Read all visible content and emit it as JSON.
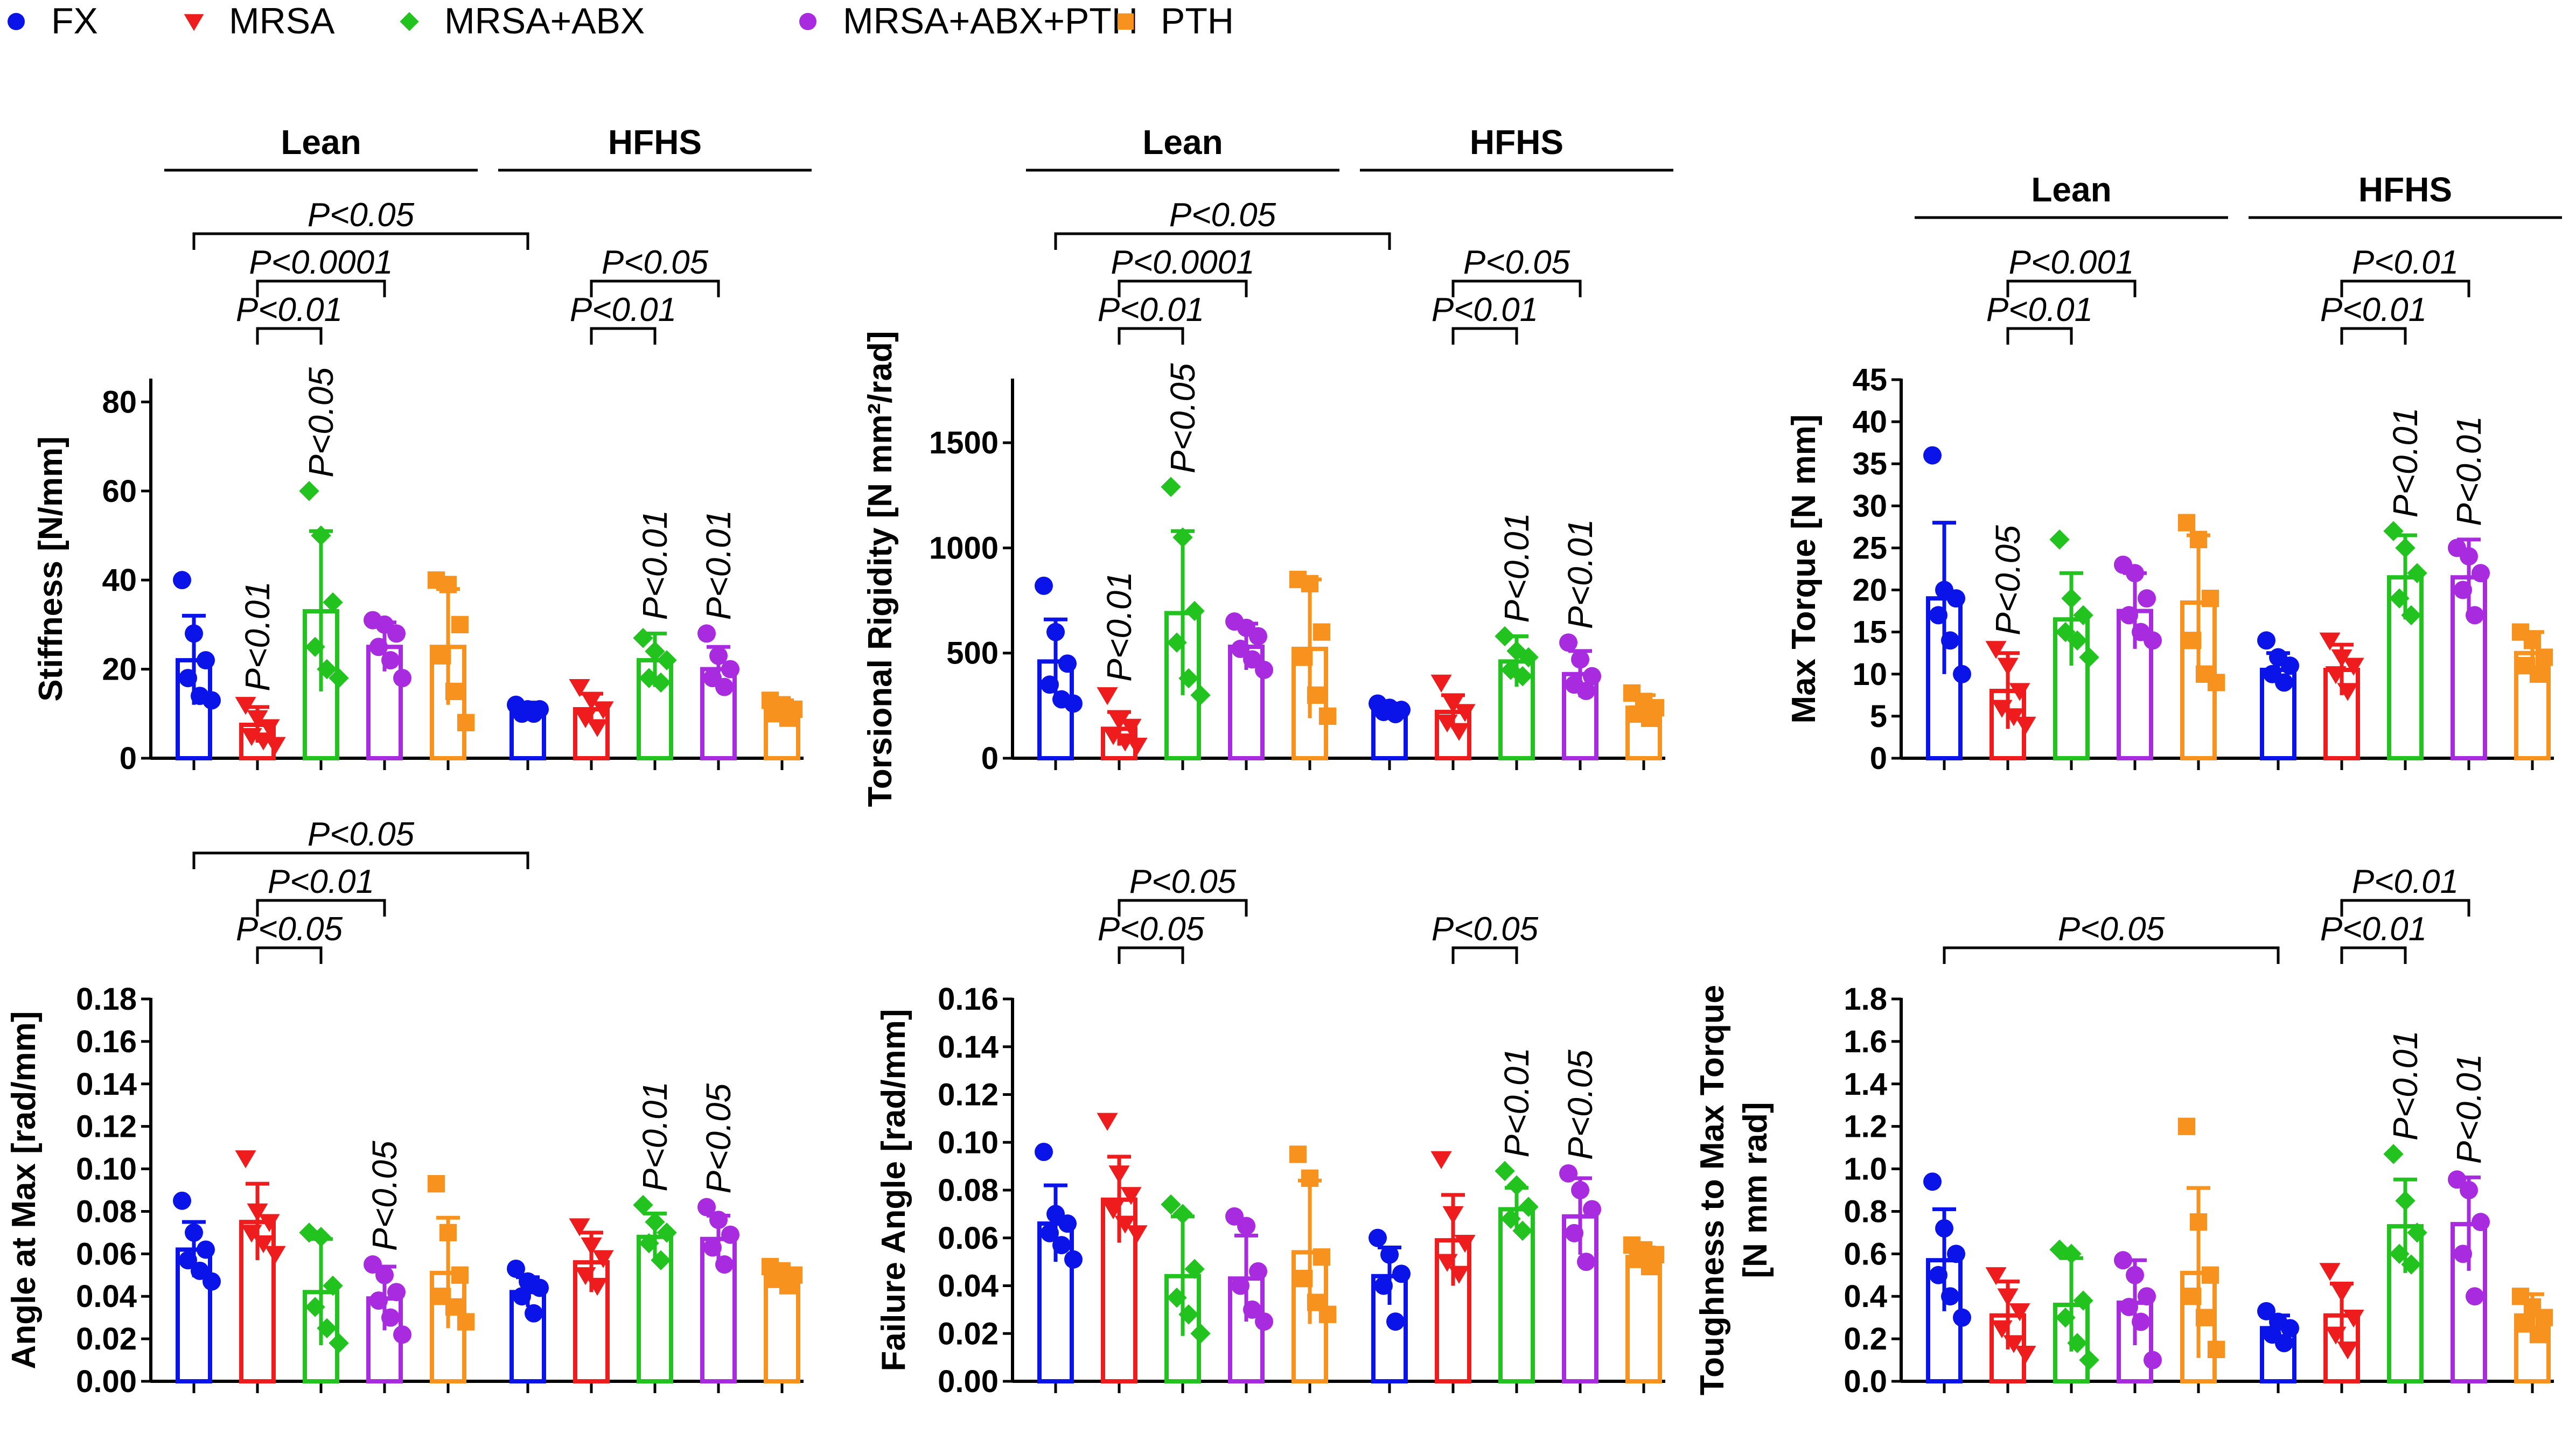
{
  "figure": {
    "legend": [
      {
        "label": "FX",
        "color": "#0b14e8",
        "marker": "circle"
      },
      {
        "label": "MRSA",
        "color": "#ee1c1c",
        "marker": "triangle-down"
      },
      {
        "label": "MRSA+ABX",
        "color": "#22c31f",
        "marker": "diamond"
      },
      {
        "label": "MRSA+ABX+PTH",
        "color": "#a82be0",
        "marker": "circle"
      },
      {
        "label": "PTH",
        "color": "#f7921e",
        "marker": "square"
      }
    ],
    "tick_format_note": "y tick labels as printed"
  },
  "chart_data": [
    {
      "id": "stiffness",
      "type": "bar",
      "ylabel": [
        "Stiffness [N/mm]"
      ],
      "ylim": [
        0,
        85
      ],
      "yticks": [
        0,
        20,
        40,
        60,
        80
      ],
      "ytick_labels": [
        "0",
        "20",
        "40",
        "60",
        "80"
      ],
      "groups": [
        {
          "label": "Lean",
          "from": 0,
          "to": 4
        },
        {
          "label": "HFHS",
          "from": 5,
          "to": 9
        }
      ],
      "categories": [
        "FX",
        "MRSA",
        "MRSA+ABX",
        "MRSA+ABX+PTH",
        "PTH",
        "FX",
        "MRSA",
        "MRSA+ABX",
        "MRSA+ABX+PTH",
        "PTH"
      ],
      "series_index": [
        0,
        1,
        2,
        3,
        4,
        0,
        1,
        2,
        3,
        4
      ],
      "values": [
        22,
        7.5,
        33,
        25,
        25,
        11,
        11,
        22,
        20,
        11
      ],
      "errors": [
        10,
        4,
        18,
        5.5,
        13,
        1.5,
        3.5,
        6,
        5,
        2
      ],
      "points": [
        [
          40,
          28,
          22,
          18,
          14,
          13
        ],
        [
          12,
          9,
          7,
          5,
          4,
          3
        ],
        [
          60,
          50,
          35,
          25,
          20,
          18
        ],
        [
          31,
          30,
          28,
          25,
          22,
          18
        ],
        [
          40,
          39,
          30,
          23,
          15,
          8
        ],
        [
          12,
          11,
          11,
          10,
          10
        ],
        [
          16,
          13,
          11,
          9,
          7
        ],
        [
          27,
          24,
          22,
          18,
          17
        ],
        [
          28,
          23,
          20,
          18,
          16
        ],
        [
          13,
          12,
          11,
          10,
          9
        ]
      ],
      "vertical_annotations": [
        {
          "bar": 1,
          "text": "P<0.01"
        },
        {
          "bar": 2,
          "text": "P<0.05"
        },
        {
          "bar": 7,
          "text": "P<0.01"
        },
        {
          "bar": 8,
          "text": "P<0.01"
        }
      ],
      "brackets": [
        {
          "from": 0,
          "to": 5,
          "text": "P<0.05"
        },
        {
          "from": 1,
          "to": 3,
          "text": "P<0.0001"
        },
        {
          "from": 1,
          "to": 2,
          "text": "P<0.01"
        },
        {
          "from": 6,
          "to": 8,
          "text": "P<0.05"
        },
        {
          "from": 6,
          "to": 7,
          "text": "P<0.01"
        }
      ]
    },
    {
      "id": "torsional_rigidity",
      "type": "bar",
      "ylabel": [
        "Torsional Rigidity [N mm²/rad]"
      ],
      "ylim": [
        0,
        1800
      ],
      "yticks": [
        0,
        500,
        1000,
        1500
      ],
      "ytick_labels": [
        "0",
        "500",
        "1000",
        "1500"
      ],
      "groups": [
        {
          "label": "Lean",
          "from": 0,
          "to": 4
        },
        {
          "label": "HFHS",
          "from": 5,
          "to": 9
        }
      ],
      "categories": [
        "FX",
        "MRSA",
        "MRSA+ABX",
        "MRSA+ABX+PTH",
        "PTH",
        "FX",
        "MRSA",
        "MRSA+ABX",
        "MRSA+ABX+PTH",
        "PTH"
      ],
      "series_index": [
        0,
        1,
        2,
        3,
        4,
        0,
        1,
        2,
        3,
        4
      ],
      "values": [
        460,
        140,
        690,
        530,
        520,
        230,
        220,
        460,
        400,
        240
      ],
      "errors": [
        200,
        80,
        390,
        110,
        330,
        30,
        80,
        120,
        110,
        60
      ],
      "points": [
        [
          820,
          600,
          450,
          350,
          280,
          260
        ],
        [
          300,
          180,
          150,
          110,
          80,
          60
        ],
        [
          1290,
          1050,
          700,
          550,
          380,
          300
        ],
        [
          650,
          620,
          580,
          520,
          470,
          420
        ],
        [
          850,
          830,
          600,
          480,
          300,
          200
        ],
        [
          260,
          240,
          230,
          220,
          210
        ],
        [
          360,
          260,
          220,
          170,
          130
        ],
        [
          580,
          510,
          480,
          420,
          390
        ],
        [
          550,
          470,
          390,
          350,
          320
        ],
        [
          310,
          270,
          240,
          210,
          190
        ]
      ],
      "vertical_annotations": [
        {
          "bar": 1,
          "text": "P<0.01"
        },
        {
          "bar": 2,
          "text": "P<0.05"
        },
        {
          "bar": 7,
          "text": "P<0.01"
        },
        {
          "bar": 8,
          "text": "P<0.01"
        }
      ],
      "brackets": [
        {
          "from": 0,
          "to": 5,
          "text": "P<0.05"
        },
        {
          "from": 1,
          "to": 3,
          "text": "P<0.0001"
        },
        {
          "from": 1,
          "to": 2,
          "text": "P<0.01"
        },
        {
          "from": 6,
          "to": 8,
          "text": "P<0.05"
        },
        {
          "from": 6,
          "to": 7,
          "text": "P<0.01"
        }
      ]
    },
    {
      "id": "max_torque",
      "type": "bar",
      "ylabel": [
        "Max Torque [N mm]"
      ],
      "ylim": [
        0,
        45
      ],
      "yticks": [
        0,
        5,
        10,
        15,
        20,
        25,
        30,
        35,
        40,
        45
      ],
      "ytick_labels": [
        "0",
        "5",
        "10",
        "15",
        "20",
        "25",
        "30",
        "35",
        "40",
        "45"
      ],
      "groups": [
        {
          "label": "Lean",
          "from": 0,
          "to": 4
        },
        {
          "label": "HFHS",
          "from": 5,
          "to": 9
        }
      ],
      "categories": [
        "FX",
        "MRSA",
        "MRSA+ABX",
        "MRSA+ABX+PTH",
        "PTH",
        "FX",
        "MRSA",
        "MRSA+ABX",
        "MRSA+ABX+PTH",
        "PTH"
      ],
      "series_index": [
        0,
        1,
        2,
        3,
        4,
        0,
        1,
        2,
        3,
        4
      ],
      "values": [
        19,
        8,
        16.5,
        17.5,
        18.5,
        10.5,
        10.5,
        21.5,
        21.5,
        12.5
      ],
      "errors": [
        9,
        4.5,
        5.5,
        4.5,
        8,
        2,
        3,
        5,
        4.5,
        2.5
      ],
      "points": [
        [
          36,
          20,
          19,
          17,
          14,
          10
        ],
        [
          13,
          11,
          8,
          6,
          5,
          4
        ],
        [
          26,
          19,
          17,
          15,
          14,
          12
        ],
        [
          23,
          22,
          19,
          17,
          15,
          14
        ],
        [
          28,
          26,
          19,
          14,
          10,
          9
        ],
        [
          14,
          12,
          11,
          10,
          9
        ],
        [
          14,
          12,
          11,
          10,
          8
        ],
        [
          27,
          25,
          22,
          19,
          17
        ],
        [
          25,
          24,
          22,
          20,
          17
        ],
        [
          15,
          14,
          12,
          11,
          10
        ]
      ],
      "vertical_annotations": [
        {
          "bar": 1,
          "text": "P<0.05"
        },
        {
          "bar": 7,
          "text": "P<0.01"
        },
        {
          "bar": 8,
          "text": "P<0.01"
        }
      ],
      "brackets": [
        {
          "from": 1,
          "to": 3,
          "text": "P<0.001"
        },
        {
          "from": 1,
          "to": 2,
          "text": "P<0.01"
        },
        {
          "from": 6,
          "to": 8,
          "text": "P<0.01"
        },
        {
          "from": 6,
          "to": 7,
          "text": "P<0.01"
        }
      ]
    },
    {
      "id": "angle_at_max",
      "type": "bar",
      "ylabel": [
        "Angle at Max [rad/mm]"
      ],
      "ylim": [
        0,
        0.18
      ],
      "yticks": [
        0,
        0.02,
        0.04,
        0.06,
        0.08,
        0.1,
        0.12,
        0.14,
        0.16,
        0.18
      ],
      "ytick_labels": [
        "0.00",
        "0.02",
        "0.04",
        "0.06",
        "0.08",
        "0.10",
        "0.12",
        "0.14",
        "0.16",
        "0.18"
      ],
      "groups": [],
      "categories": [
        "FX",
        "MRSA",
        "MRSA+ABX",
        "MRSA+ABX+PTH",
        "PTH",
        "FX",
        "MRSA",
        "MRSA+ABX",
        "MRSA+ABX+PTH",
        "PTH"
      ],
      "series_index": [
        0,
        1,
        2,
        3,
        4,
        0,
        1,
        2,
        3,
        4
      ],
      "values": [
        0.062,
        0.075,
        0.042,
        0.039,
        0.051,
        0.042,
        0.056,
        0.068,
        0.067,
        0.049
      ],
      "errors": [
        0.013,
        0.018,
        0.025,
        0.015,
        0.026,
        0.007,
        0.014,
        0.011,
        0.011,
        0.004
      ],
      "points": [
        [
          0.085,
          0.07,
          0.062,
          0.057,
          0.052,
          0.047
        ],
        [
          0.105,
          0.08,
          0.075,
          0.07,
          0.065,
          0.06
        ],
        [
          0.07,
          0.068,
          0.045,
          0.035,
          0.025,
          0.018
        ],
        [
          0.055,
          0.05,
          0.042,
          0.038,
          0.03,
          0.022
        ],
        [
          0.093,
          0.07,
          0.05,
          0.04,
          0.035,
          0.028
        ],
        [
          0.053,
          0.047,
          0.044,
          0.04,
          0.032
        ],
        [
          0.073,
          0.064,
          0.058,
          0.05,
          0.045
        ],
        [
          0.083,
          0.075,
          0.07,
          0.065,
          0.057
        ],
        [
          0.082,
          0.076,
          0.069,
          0.063,
          0.055
        ],
        [
          0.054,
          0.052,
          0.05,
          0.048,
          0.045
        ]
      ],
      "vertical_annotations": [
        {
          "bar": 3,
          "text": "P<0.05"
        },
        {
          "bar": 7,
          "text": "P<0.01"
        },
        {
          "bar": 8,
          "text": "P<0.05"
        }
      ],
      "brackets": [
        {
          "from": 0,
          "to": 5,
          "text": "P<0.05"
        },
        {
          "from": 1,
          "to": 3,
          "text": "P<0.01"
        },
        {
          "from": 1,
          "to": 2,
          "text": "P<0.05"
        }
      ]
    },
    {
      "id": "failure_angle",
      "type": "bar",
      "ylabel": [
        "Failure Angle [rad/mm]"
      ],
      "ylim": [
        0,
        0.16
      ],
      "yticks": [
        0,
        0.02,
        0.04,
        0.06,
        0.08,
        0.1,
        0.12,
        0.14,
        0.16
      ],
      "ytick_labels": [
        "0.00",
        "0.02",
        "0.04",
        "0.06",
        "0.08",
        "0.10",
        "0.12",
        "0.14",
        "0.16"
      ],
      "groups": [],
      "categories": [
        "FX",
        "MRSA",
        "MRSA+ABX",
        "MRSA+ABX+PTH",
        "PTH",
        "FX",
        "MRSA",
        "MRSA+ABX",
        "MRSA+ABX+PTH",
        "PTH"
      ],
      "series_index": [
        0,
        1,
        2,
        3,
        4,
        0,
        1,
        2,
        3,
        4
      ],
      "values": [
        0.066,
        0.076,
        0.044,
        0.043,
        0.054,
        0.044,
        0.059,
        0.072,
        0.069,
        0.052
      ],
      "errors": [
        0.016,
        0.018,
        0.025,
        0.018,
        0.03,
        0.012,
        0.019,
        0.009,
        0.016,
        0.004
      ],
      "points": [
        [
          0.096,
          0.07,
          0.066,
          0.062,
          0.057,
          0.051
        ],
        [
          0.109,
          0.087,
          0.078,
          0.072,
          0.066,
          0.062
        ],
        [
          0.074,
          0.07,
          0.047,
          0.035,
          0.028,
          0.02
        ],
        [
          0.069,
          0.065,
          0.046,
          0.04,
          0.03,
          0.025
        ],
        [
          0.095,
          0.085,
          0.052,
          0.043,
          0.033,
          0.028
        ],
        [
          0.06,
          0.053,
          0.045,
          0.04,
          0.025
        ],
        [
          0.093,
          0.07,
          0.058,
          0.05,
          0.045
        ],
        [
          0.088,
          0.082,
          0.073,
          0.068,
          0.063
        ],
        [
          0.087,
          0.08,
          0.072,
          0.062,
          0.05
        ],
        [
          0.057,
          0.055,
          0.053,
          0.051,
          0.048
        ]
      ],
      "vertical_annotations": [
        {
          "bar": 7,
          "text": "P<0.01"
        },
        {
          "bar": 8,
          "text": "P<0.05"
        }
      ],
      "brackets": [
        {
          "from": 1,
          "to": 3,
          "text": "P<0.05"
        },
        {
          "from": 1,
          "to": 2,
          "text": "P<0.05"
        },
        {
          "from": 6,
          "to": 7,
          "text": "P<0.05"
        }
      ]
    },
    {
      "id": "toughness",
      "type": "bar",
      "ylabel": [
        "Toughness to Max Torque",
        "[N mm rad]"
      ],
      "ylim": [
        0,
        1.8
      ],
      "yticks": [
        0,
        0.2,
        0.4,
        0.6,
        0.8,
        1.0,
        1.2,
        1.4,
        1.6,
        1.8
      ],
      "ytick_labels": [
        "0.0",
        "0.2",
        "0.4",
        "0.6",
        "0.8",
        "1.0",
        "1.2",
        "1.4",
        "1.6",
        "1.8"
      ],
      "groups": [],
      "categories": [
        "FX",
        "MRSA",
        "MRSA+ABX",
        "MRSA+ABX+PTH",
        "PTH",
        "FX",
        "MRSA",
        "MRSA+ABX",
        "MRSA+ABX+PTH",
        "PTH"
      ],
      "series_index": [
        0,
        1,
        2,
        3,
        4,
        0,
        1,
        2,
        3,
        4
      ],
      "values": [
        0.57,
        0.31,
        0.36,
        0.37,
        0.51,
        0.25,
        0.31,
        0.73,
        0.74,
        0.31
      ],
      "errors": [
        0.24,
        0.16,
        0.22,
        0.2,
        0.4,
        0.06,
        0.15,
        0.22,
        0.22,
        0.1
      ],
      "points": [
        [
          0.94,
          0.72,
          0.6,
          0.5,
          0.4,
          0.3
        ],
        [
          0.5,
          0.4,
          0.33,
          0.25,
          0.18,
          0.13
        ],
        [
          0.62,
          0.6,
          0.38,
          0.3,
          0.18,
          0.1
        ],
        [
          0.57,
          0.5,
          0.4,
          0.35,
          0.28,
          0.1
        ],
        [
          1.2,
          0.75,
          0.5,
          0.4,
          0.3,
          0.15
        ],
        [
          0.33,
          0.28,
          0.25,
          0.22,
          0.18
        ],
        [
          0.52,
          0.42,
          0.3,
          0.22,
          0.15
        ],
        [
          1.07,
          0.85,
          0.7,
          0.6,
          0.55
        ],
        [
          0.95,
          0.9,
          0.75,
          0.6,
          0.4
        ],
        [
          0.4,
          0.35,
          0.3,
          0.27,
          0.22
        ]
      ],
      "vertical_annotations": [
        {
          "bar": 7,
          "text": "P<0.01"
        },
        {
          "bar": 8,
          "text": "P<0.01"
        }
      ],
      "brackets": [
        {
          "from": 0,
          "to": 5,
          "text": "P<0.05"
        },
        {
          "from": 6,
          "to": 8,
          "text": "P<0.01"
        },
        {
          "from": 6,
          "to": 7,
          "text": "P<0.01"
        }
      ]
    }
  ]
}
